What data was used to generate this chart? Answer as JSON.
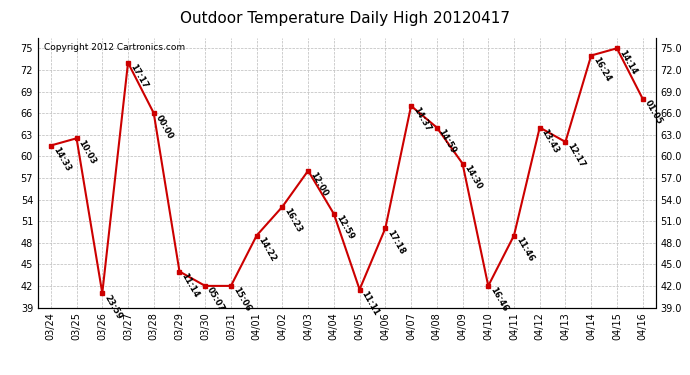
{
  "title": "Outdoor Temperature Daily High 20120417",
  "copyright": "Copyright 2012 Cartronics.com",
  "dates": [
    "03/24",
    "03/25",
    "03/26",
    "03/27",
    "03/28",
    "03/29",
    "03/30",
    "03/31",
    "04/01",
    "04/02",
    "04/03",
    "04/04",
    "04/05",
    "04/06",
    "04/07",
    "04/08",
    "04/09",
    "04/10",
    "04/11",
    "04/12",
    "04/13",
    "04/14",
    "04/15",
    "04/16"
  ],
  "values": [
    61.5,
    62.5,
    41.0,
    73.0,
    66.0,
    44.0,
    42.0,
    42.0,
    49.0,
    53.0,
    58.0,
    52.0,
    41.5,
    50.0,
    67.0,
    64.0,
    59.0,
    42.0,
    49.0,
    64.0,
    62.0,
    74.0,
    75.0,
    68.0
  ],
  "labels": [
    "14:33",
    "10:03",
    "23:59",
    "17:17",
    "00:00",
    "11:14",
    "05:07",
    "15:06",
    "14:22",
    "16:23",
    "12:00",
    "12:59",
    "11:11",
    "17:18",
    "14:37",
    "14:59",
    "14:30",
    "16:46",
    "11:46",
    "13:43",
    "12:17",
    "16:24",
    "14:14",
    "01:05"
  ],
  "line_color": "#cc0000",
  "marker_color": "#cc0000",
  "bg_color": "#ffffff",
  "plot_bg_color": "#ffffff",
  "grid_color": "#bbbbbb",
  "ylim": [
    39.0,
    76.5
  ],
  "yticks_left": [
    75,
    72,
    69,
    66,
    63,
    60,
    57,
    54,
    51,
    48,
    45,
    42,
    39
  ],
  "yticks_right": [
    75.0,
    72.0,
    69.0,
    66.0,
    63.0,
    60.0,
    57.0,
    54.0,
    51.0,
    48.0,
    45.0,
    42.0,
    39.0
  ],
  "title_fontsize": 11,
  "label_fontsize": 6,
  "tick_fontsize": 7,
  "copyright_fontsize": 6.5
}
